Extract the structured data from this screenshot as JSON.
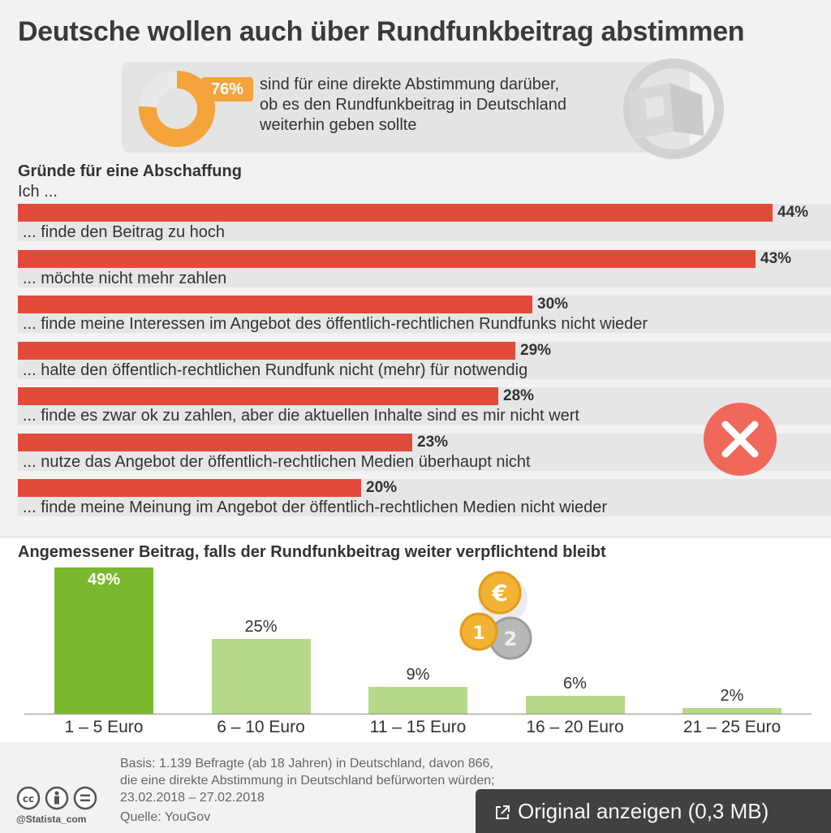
{
  "title": "Deutsche wollen auch über Rundfunkbeitrag abstimmen",
  "highlight": {
    "percent_label": "76%",
    "percent_value": 76,
    "text_lines": [
      "sind für eine direkte Abstimmung darüber,",
      "ob es den Rundfunkbeitrag in Deutschland",
      "weiterhin geben sollte"
    ],
    "accent_color": "#f5a33b"
  },
  "reasons_section": {
    "heading": "Gründe für eine Abschaffung",
    "subheading": "Ich ..."
  },
  "summary_section": {
    "heading": "Angemessener Beitrag, falls der Rundfunkbeitrag weiter verpflichtend bleibt"
  },
  "footer": {
    "basis_lines": [
      "Basis: 1.139 Befragte (ab 18 Jahren) in Deutschland, davon 866,",
      "die eine direkte Abstimmung in Deutschland befürworten würden;",
      "23.02.2018 – 27.02.2018"
    ],
    "source": "Quelle: YouGov",
    "handle": "@Statista_com",
    "cc_icons": [
      "cc-icon",
      "attribution-icon",
      "no-derivatives-icon"
    ]
  },
  "overlay": {
    "label": "Original anzeigen (0,3 MB)",
    "icon": "external-link-icon"
  },
  "icons": {
    "reasons_mark": "cross-icon",
    "reasons_mark_color": "#f0685a",
    "coins": "coins-icon"
  },
  "chart_data": [
    {
      "type": "bar",
      "orientation": "horizontal",
      "categories": [
        "... finde den Beitrag zu hoch",
        "... möchte nicht mehr zahlen",
        "... finde meine Interessen im Angebot des öffentlich-rechtlichen Rundfunks nicht wieder",
        "... halte den öffentlich-rechtlichen Rundfunk nicht (mehr) für notwendig",
        "... finde es zwar ok zu zahlen, aber die aktuellen Inhalte sind es mir nicht wert",
        "... nutze das Angebot der öffentlich-rechtlichen Medien überhaupt nicht",
        "... finde meine Meinung im Angebot der öffentlich-rechtlichen Medien nicht wieder"
      ],
      "values": [
        44,
        43,
        30,
        29,
        28,
        23,
        20
      ],
      "value_labels": [
        "44%",
        "43%",
        "30%",
        "29%",
        "28%",
        "23%",
        "20%"
      ],
      "unit": "%",
      "xlim": [
        0,
        44
      ],
      "color": "#e14b3a",
      "grid": false
    },
    {
      "type": "bar",
      "orientation": "vertical",
      "categories": [
        "1 – 5 Euro",
        "6 – 10 Euro",
        "11 – 15 Euro",
        "16 – 20 Euro",
        "21 – 25 Euro"
      ],
      "values": [
        49,
        25,
        9,
        6,
        2
      ],
      "value_labels": [
        "49%",
        "25%",
        "9%",
        "6%",
        "2%"
      ],
      "unit": "%",
      "ylim": [
        0,
        49
      ],
      "colors": [
        "#7ab82e",
        "#b5d88a",
        "#b5d88a",
        "#b5d88a",
        "#b5d88a"
      ],
      "grid": false
    }
  ]
}
